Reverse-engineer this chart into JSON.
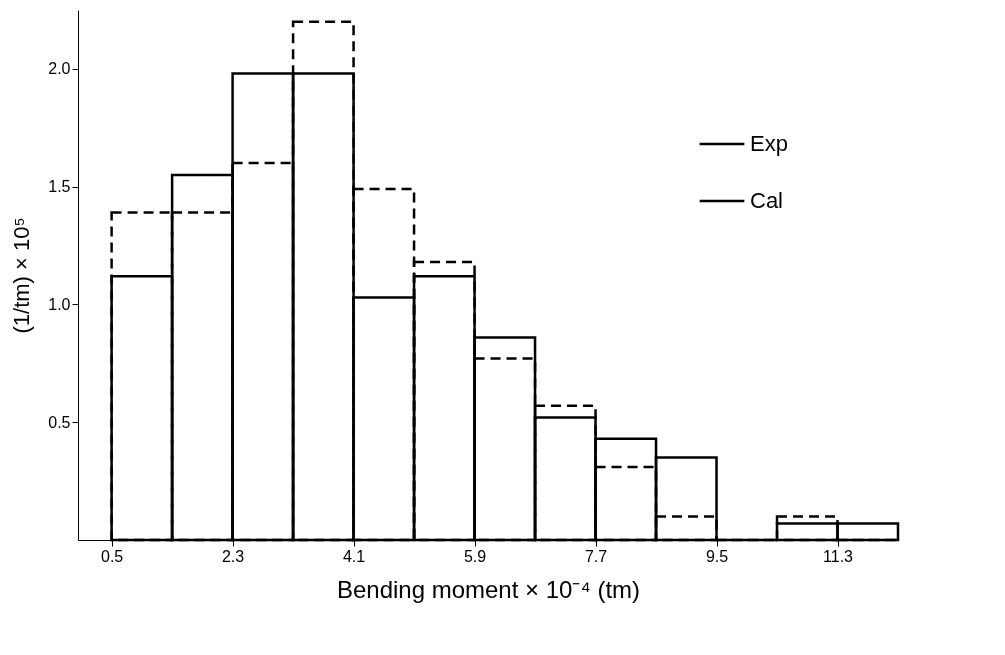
{
  "chart_data": {
    "type": "histogram",
    "xlabel": "Bending moment × 10⁻⁴ (tm)",
    "ylabel": "(1/tm) × 10⁵",
    "bins": [
      0.5,
      1.4,
      2.3,
      3.2,
      4.1,
      5.0,
      5.9,
      6.8,
      7.7,
      8.6,
      9.5,
      10.4,
      11.3,
      12.2
    ],
    "series": [
      {
        "name": "Exp",
        "color": "#000000",
        "line_style": "solid",
        "values": [
          1.12,
          1.55,
          1.98,
          1.98,
          1.03,
          1.12,
          0.86,
          0.52,
          0.43,
          0.35,
          0,
          0.07,
          0.07
        ]
      },
      {
        "name": "Cal",
        "color": "#000000",
        "line_style": "dashed",
        "values": [
          1.39,
          1.39,
          1.6,
          2.2,
          1.49,
          1.18,
          0.77,
          0.57,
          0.31,
          0.1,
          0,
          0.1,
          0
        ]
      }
    ],
    "xlim": [
      0,
      12.2
    ],
    "xticks": [
      0.5,
      2.3,
      4.1,
      5.9,
      7.7,
      9.5,
      11.3
    ],
    "ylim": [
      0,
      2.25
    ],
    "yticks": [
      0.5,
      {
        "value": 1,
        "label": "1.0"
      },
      1.5,
      {
        "value": 2,
        "label": "2.0"
      }
    ],
    "grid": false,
    "legend": "top right"
  }
}
